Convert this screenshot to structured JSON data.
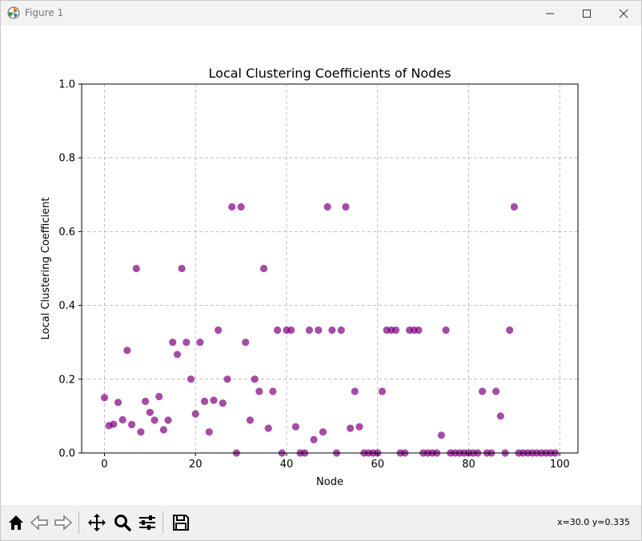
{
  "window": {
    "title": "Figure 1"
  },
  "toolbar": {
    "buttons": [
      {
        "name": "home",
        "icon": "home-icon"
      },
      {
        "name": "back",
        "icon": "back-arrow-icon"
      },
      {
        "name": "forward",
        "icon": "forward-arrow-icon"
      },
      {
        "name": "pan",
        "icon": "move-icon"
      },
      {
        "name": "zoom",
        "icon": "magnifier-icon"
      },
      {
        "name": "configure",
        "icon": "sliders-icon"
      },
      {
        "name": "save",
        "icon": "floppy-disk-icon"
      }
    ],
    "coords": "x=30.0 y=0.335"
  },
  "chart_data": {
    "type": "scatter",
    "title": "Local Clustering Coefficients of Nodes",
    "xlabel": "Node",
    "ylabel": "Local Clustering Coefficient",
    "xlim": [
      -5,
      104
    ],
    "ylim": [
      0,
      1.0
    ],
    "xticks": [
      0,
      20,
      40,
      60,
      80,
      100
    ],
    "yticks": [
      0.0,
      0.2,
      0.4,
      0.6,
      0.8,
      1.0
    ],
    "grid": true,
    "marker_color": "#800080",
    "x": [
      0,
      1,
      2,
      3,
      4,
      5,
      6,
      7,
      8,
      9,
      10,
      11,
      12,
      13,
      14,
      15,
      16,
      17,
      18,
      19,
      20,
      21,
      22,
      23,
      24,
      25,
      26,
      27,
      28,
      29,
      30,
      31,
      32,
      33,
      34,
      35,
      36,
      37,
      38,
      39,
      40,
      41,
      42,
      43,
      44,
      45,
      46,
      47,
      48,
      49,
      50,
      51,
      52,
      53,
      54,
      55,
      56,
      57,
      58,
      59,
      60,
      61,
      62,
      63,
      64,
      65,
      66,
      67,
      68,
      69,
      70,
      71,
      72,
      73,
      74,
      75,
      76,
      77,
      78,
      79,
      80,
      81,
      82,
      83,
      84,
      85,
      86,
      87,
      88,
      89,
      90,
      91,
      92,
      93,
      94,
      95,
      96,
      97,
      98,
      99
    ],
    "y": [
      0.15,
      0.074,
      0.078,
      0.137,
      0.09,
      0.278,
      0.077,
      0.5,
      0.057,
      0.14,
      0.11,
      0.089,
      0.153,
      0.063,
      0.089,
      0.3,
      0.267,
      0.5,
      0.3,
      0.2,
      0.106,
      0.3,
      0.14,
      0.057,
      0.143,
      0.333,
      0.135,
      0.2,
      0.667,
      0.0,
      0.667,
      0.3,
      0.089,
      0.2,
      0.167,
      0.5,
      0.067,
      0.167,
      0.333,
      0.0,
      0.333,
      0.333,
      0.071,
      0.0,
      0.0,
      0.333,
      0.036,
      0.333,
      0.057,
      0.667,
      0.333,
      0.0,
      0.333,
      0.667,
      0.067,
      0.167,
      0.071,
      0.0,
      0.0,
      0.0,
      0.0,
      0.167,
      0.333,
      0.333,
      0.333,
      0.0,
      0.0,
      0.333,
      0.333,
      0.333,
      0.0,
      0.0,
      0.0,
      0.0,
      0.048,
      0.333,
      0.0,
      0.0,
      0.0,
      0.0,
      0.0,
      0.0,
      0.0,
      0.167,
      0.0,
      0.0,
      0.167,
      0.1,
      0.0,
      0.333,
      0.667,
      0.0,
      0.0,
      0.0,
      0.0,
      0.0,
      0.0,
      0.0,
      0.0,
      0.0
    ]
  }
}
